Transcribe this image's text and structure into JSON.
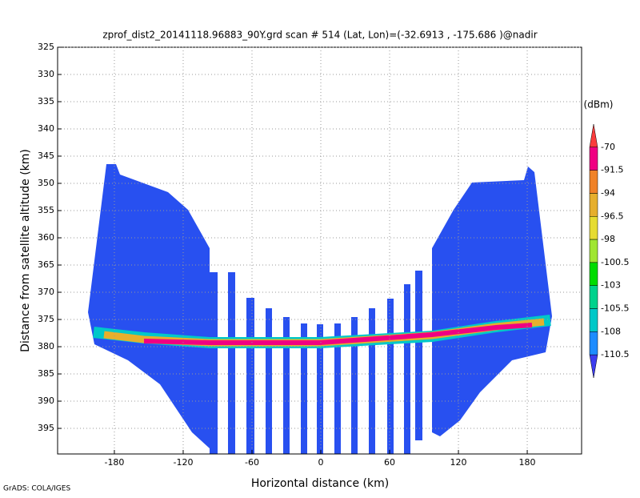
{
  "chart_data": {
    "type": "heatmap",
    "title": "zprof_dist2_20141118.96883_90Y.grd   scan # 514   (Lat, Lon)=(-32.6913 , -175.686 )@nadir",
    "x_label": "Horizontal distance (km)",
    "y_label": "Distance from satellite altitude (km)",
    "xlim": [
      -229.5,
      227.4
    ],
    "xticks": [
      -180,
      -120,
      -60,
      0,
      60,
      120,
      180
    ],
    "ylim": [
      399.7,
      325
    ],
    "yticks": [
      325,
      330,
      335,
      340,
      345,
      350,
      355,
      360,
      365,
      370,
      375,
      380,
      385,
      390,
      395
    ],
    "grid": true,
    "colorbar": {
      "label": "(dBm)",
      "levels": [
        -70,
        -91.5,
        -94,
        -96.5,
        -98,
        -100.5,
        -103,
        -105.5,
        -108,
        -110.5
      ],
      "colors": [
        "#fa3c3c",
        "#f00082",
        "#f08228",
        "#e6af2d",
        "#e6dc32",
        "#a0e632",
        "#00dc00",
        "#00d28c",
        "#00c8c8",
        "#1e8cff",
        "#3c3cf0"
      ]
    },
    "footer": "GrADS: COLA/IGES"
  }
}
